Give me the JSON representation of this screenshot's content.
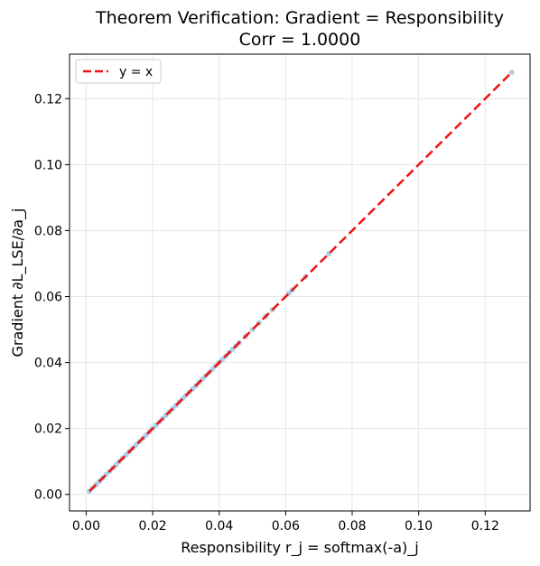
{
  "chart_data": {
    "type": "scatter",
    "title": "Theorem Verification: Gradient = Responsibility",
    "subtitle": "Corr = 1.0000",
    "xlabel": "Responsibility r_j = softmax(-a)_j",
    "ylabel": "Gradient ∂L_LSE/∂a_j",
    "xlim": [
      -0.005,
      0.1335
    ],
    "ylim": [
      -0.005,
      0.1335
    ],
    "xticks": [
      0.0,
      0.02,
      0.04,
      0.06,
      0.08,
      0.1,
      0.12
    ],
    "yticks": [
      0.0,
      0.02,
      0.04,
      0.06,
      0.08,
      0.1,
      0.12
    ],
    "xtick_labels": [
      "0.00",
      "0.02",
      "0.04",
      "0.06",
      "0.08",
      "0.10",
      "0.12"
    ],
    "ytick_labels": [
      "0.00",
      "0.02",
      "0.04",
      "0.06",
      "0.08",
      "0.10",
      "0.12"
    ],
    "grid": true,
    "legend": {
      "position": "top-left",
      "entries": [
        "y = x"
      ]
    },
    "series": [
      {
        "type": "scatter",
        "color": "#1f77b4",
        "points": [
          [
            0.001,
            0.001
          ],
          [
            0.002,
            0.002
          ],
          [
            0.003,
            0.003
          ],
          [
            0.004,
            0.004
          ],
          [
            0.005,
            0.005
          ],
          [
            0.006,
            0.006
          ],
          [
            0.007,
            0.007
          ],
          [
            0.008,
            0.008
          ],
          [
            0.009,
            0.009
          ],
          [
            0.01,
            0.01
          ],
          [
            0.011,
            0.011
          ],
          [
            0.012,
            0.012
          ],
          [
            0.013,
            0.013
          ],
          [
            0.014,
            0.014
          ],
          [
            0.015,
            0.015
          ],
          [
            0.016,
            0.016
          ],
          [
            0.017,
            0.017
          ],
          [
            0.018,
            0.018
          ],
          [
            0.019,
            0.019
          ],
          [
            0.02,
            0.02
          ],
          [
            0.021,
            0.021
          ],
          [
            0.022,
            0.022
          ],
          [
            0.023,
            0.023
          ],
          [
            0.024,
            0.024
          ],
          [
            0.025,
            0.025
          ],
          [
            0.026,
            0.026
          ],
          [
            0.027,
            0.027
          ],
          [
            0.028,
            0.028
          ],
          [
            0.029,
            0.029
          ],
          [
            0.03,
            0.03
          ],
          [
            0.031,
            0.031
          ],
          [
            0.032,
            0.032
          ],
          [
            0.033,
            0.033
          ],
          [
            0.034,
            0.034
          ],
          [
            0.035,
            0.035
          ],
          [
            0.036,
            0.036
          ],
          [
            0.037,
            0.037
          ],
          [
            0.038,
            0.038
          ],
          [
            0.039,
            0.039
          ],
          [
            0.04,
            0.04
          ],
          [
            0.041,
            0.041
          ],
          [
            0.042,
            0.042
          ],
          [
            0.043,
            0.043
          ],
          [
            0.044,
            0.044
          ],
          [
            0.045,
            0.045
          ],
          [
            0.046,
            0.046
          ],
          [
            0.048,
            0.048
          ],
          [
            0.05,
            0.05
          ],
          [
            0.052,
            0.052
          ],
          [
            0.054,
            0.054
          ],
          [
            0.056,
            0.056
          ],
          [
            0.061,
            0.061
          ],
          [
            0.062,
            0.062
          ],
          [
            0.066,
            0.066
          ],
          [
            0.073,
            0.073
          ],
          [
            0.128,
            0.128
          ]
        ]
      },
      {
        "type": "line",
        "name": "y = x",
        "color": "#ee1111",
        "dash": "dashed",
        "x": [
          0.001,
          0.128
        ],
        "y": [
          0.001,
          0.128
        ]
      }
    ]
  }
}
